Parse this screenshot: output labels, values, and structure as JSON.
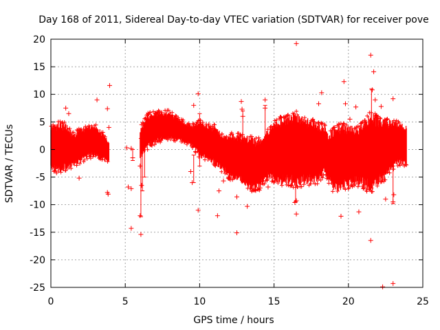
{
  "chart_data": {
    "type": "scatter",
    "title": "Day 168 of 2011, Sidereal Day-to-day VTEC variation (SDTVAR) for receiver pove",
    "xlabel": "GPS time / hours",
    "ylabel": "SDTVAR / TECUs",
    "xlim": [
      0,
      25
    ],
    "ylim": [
      -25,
      20
    ],
    "x_ticks": [
      0,
      5,
      10,
      15,
      20,
      25
    ],
    "y_ticks": [
      -25,
      -20,
      -15,
      -10,
      -5,
      0,
      5,
      10,
      15,
      20
    ],
    "grid": true,
    "marker": "+",
    "color": "#ff0000",
    "dense_band": [
      {
        "x": 0.0,
        "lo": -3.5,
        "hi": 4.5
      },
      {
        "x": 0.5,
        "lo": -4.5,
        "hi": 5.0
      },
      {
        "x": 1.0,
        "lo": -4.0,
        "hi": 5.0
      },
      {
        "x": 1.5,
        "lo": -3.0,
        "hi": 3.0
      },
      {
        "x": 2.0,
        "lo": -2.5,
        "hi": 4.0
      },
      {
        "x": 2.5,
        "lo": -1.5,
        "hi": 4.5
      },
      {
        "x": 3.0,
        "lo": -1.5,
        "hi": 4.5
      },
      {
        "x": 3.5,
        "lo": -2.0,
        "hi": 3.0
      },
      {
        "x": 3.9,
        "lo": -2.5,
        "hi": 1.5
      },
      {
        "x": 6.0,
        "lo": -2.0,
        "hi": 4.0
      },
      {
        "x": 6.5,
        "lo": 0.0,
        "hi": 6.5
      },
      {
        "x": 7.0,
        "lo": 1.0,
        "hi": 7.0
      },
      {
        "x": 7.5,
        "lo": 1.5,
        "hi": 7.0
      },
      {
        "x": 8.0,
        "lo": 1.5,
        "hi": 7.0
      },
      {
        "x": 8.5,
        "lo": 1.5,
        "hi": 6.0
      },
      {
        "x": 9.0,
        "lo": 1.0,
        "hi": 5.0
      },
      {
        "x": 9.5,
        "lo": 0.5,
        "hi": 4.5
      },
      {
        "x": 10.0,
        "lo": -1.5,
        "hi": 5.5
      },
      {
        "x": 10.5,
        "lo": -2.0,
        "hi": 4.5
      },
      {
        "x": 11.0,
        "lo": -3.0,
        "hi": 4.5
      },
      {
        "x": 11.5,
        "lo": -4.0,
        "hi": 3.0
      },
      {
        "x": 12.0,
        "lo": -5.5,
        "hi": 3.0
      },
      {
        "x": 12.5,
        "lo": -6.0,
        "hi": 3.0
      },
      {
        "x": 13.0,
        "lo": -6.5,
        "hi": 2.5
      },
      {
        "x": 13.5,
        "lo": -7.5,
        "hi": 2.5
      },
      {
        "x": 14.0,
        "lo": -7.5,
        "hi": 2.0
      },
      {
        "x": 14.5,
        "lo": -5.5,
        "hi": 3.5
      },
      {
        "x": 15.0,
        "lo": -6.0,
        "hi": 5.0
      },
      {
        "x": 15.5,
        "lo": -6.5,
        "hi": 6.0
      },
      {
        "x": 16.0,
        "lo": -6.5,
        "hi": 6.5
      },
      {
        "x": 16.5,
        "lo": -7.0,
        "hi": 7.0
      },
      {
        "x": 17.0,
        "lo": -6.5,
        "hi": 6.0
      },
      {
        "x": 17.5,
        "lo": -6.5,
        "hi": 5.5
      },
      {
        "x": 18.0,
        "lo": -6.0,
        "hi": 5.0
      },
      {
        "x": 18.4,
        "lo": -4.5,
        "hi": 4.5
      },
      {
        "x": 18.6,
        "lo": -5.5,
        "hi": 3.0
      },
      {
        "x": 19.0,
        "lo": -8.0,
        "hi": 4.0
      },
      {
        "x": 19.5,
        "lo": -7.5,
        "hi": 5.0
      },
      {
        "x": 20.0,
        "lo": -7.0,
        "hi": 4.5
      },
      {
        "x": 20.5,
        "lo": -6.5,
        "hi": 4.0
      },
      {
        "x": 21.0,
        "lo": -7.0,
        "hi": 5.0
      },
      {
        "x": 21.5,
        "lo": -8.0,
        "hi": 7.0
      },
      {
        "x": 22.0,
        "lo": -6.5,
        "hi": 6.0
      },
      {
        "x": 22.5,
        "lo": -5.5,
        "hi": 5.5
      },
      {
        "x": 23.0,
        "lo": -3.5,
        "hi": 5.5
      },
      {
        "x": 23.5,
        "lo": -3.0,
        "hi": 5.0
      },
      {
        "x": 23.9,
        "lo": -3.0,
        "hi": 4.5
      }
    ],
    "outliers": [
      {
        "x": 1.2,
        "y": 6.5
      },
      {
        "x": 1.0,
        "y": 7.5
      },
      {
        "x": 1.9,
        "y": -5.2
      },
      {
        "x": 3.1,
        "y": 9.0
      },
      {
        "x": 3.8,
        "y": 7.4
      },
      {
        "x": 3.95,
        "y": 11.6
      },
      {
        "x": 3.8,
        "y": -7.8
      },
      {
        "x": 3.85,
        "y": -8.1
      },
      {
        "x": 3.9,
        "y": 4.0
      },
      {
        "x": 5.1,
        "y": 0.3
      },
      {
        "x": 5.4,
        "y": 0.2
      },
      {
        "x": 5.2,
        "y": -6.8
      },
      {
        "x": 5.4,
        "y": -7.1
      },
      {
        "x": 5.5,
        "y": -1.5
      },
      {
        "x": 5.4,
        "y": -14.3
      },
      {
        "x": 6.0,
        "y": -12.0
      },
      {
        "x": 6.05,
        "y": -15.4
      },
      {
        "x": 6.1,
        "y": -6.5
      },
      {
        "x": 6.0,
        "y": -3.0
      },
      {
        "x": 9.9,
        "y": 10.1
      },
      {
        "x": 9.9,
        "y": -11.0
      },
      {
        "x": 9.6,
        "y": 8.0
      },
      {
        "x": 9.5,
        "y": -6.0
      },
      {
        "x": 9.4,
        "y": -4.0
      },
      {
        "x": 11.2,
        "y": -12.0
      },
      {
        "x": 11.3,
        "y": -7.5
      },
      {
        "x": 11.6,
        "y": -5.7
      },
      {
        "x": 12.5,
        "y": -15.1
      },
      {
        "x": 12.5,
        "y": -8.6
      },
      {
        "x": 12.8,
        "y": 8.7
      },
      {
        "x": 12.85,
        "y": 7.3
      },
      {
        "x": 12.9,
        "y": 6.0
      },
      {
        "x": 13.2,
        "y": -10.3
      },
      {
        "x": 14.4,
        "y": 9.0
      },
      {
        "x": 14.4,
        "y": 7.5
      },
      {
        "x": 14.6,
        "y": -6.8
      },
      {
        "x": 16.5,
        "y": 19.2
      },
      {
        "x": 16.4,
        "y": -9.6
      },
      {
        "x": 16.5,
        "y": -11.7
      },
      {
        "x": 16.5,
        "y": -9.3
      },
      {
        "x": 18.0,
        "y": 8.3
      },
      {
        "x": 18.2,
        "y": 10.3
      },
      {
        "x": 19.5,
        "y": -12.1
      },
      {
        "x": 19.7,
        "y": 12.3
      },
      {
        "x": 19.8,
        "y": 8.3
      },
      {
        "x": 20.1,
        "y": 5.5
      },
      {
        "x": 20.5,
        "y": 7.7
      },
      {
        "x": 20.7,
        "y": -11.3
      },
      {
        "x": 21.5,
        "y": 17.1
      },
      {
        "x": 21.7,
        "y": 14.1
      },
      {
        "x": 21.5,
        "y": -16.5
      },
      {
        "x": 21.6,
        "y": 10.8
      },
      {
        "x": 21.8,
        "y": 9.0
      },
      {
        "x": 22.2,
        "y": 7.8
      },
      {
        "x": 22.3,
        "y": -24.9
      },
      {
        "x": 22.5,
        "y": -9.0
      },
      {
        "x": 23.0,
        "y": 9.2
      },
      {
        "x": 23.0,
        "y": -24.3
      },
      {
        "x": 23.0,
        "y": -9.5
      },
      {
        "x": 23.05,
        "y": -8.2
      }
    ],
    "error_bars": [
      {
        "x": 6.05,
        "lo": -12.2,
        "hi": 2.0
      },
      {
        "x": 6.15,
        "lo": -7.5,
        "hi": 2.5
      },
      {
        "x": 6.3,
        "lo": -5.0,
        "hi": 3.5
      },
      {
        "x": 5.5,
        "lo": -2.0,
        "hi": 0.0
      },
      {
        "x": 9.6,
        "lo": -6.0,
        "hi": -1.0
      },
      {
        "x": 10.0,
        "lo": -3.0,
        "hi": 6.5
      },
      {
        "x": 12.9,
        "lo": -3.0,
        "hi": 7.0
      },
      {
        "x": 14.4,
        "lo": -5.0,
        "hi": 8.0
      },
      {
        "x": 16.45,
        "lo": -9.5,
        "hi": -5.0
      },
      {
        "x": 21.55,
        "lo": -7.0,
        "hi": 11.0
      },
      {
        "x": 23.0,
        "lo": -9.8,
        "hi": -3.0
      }
    ]
  }
}
